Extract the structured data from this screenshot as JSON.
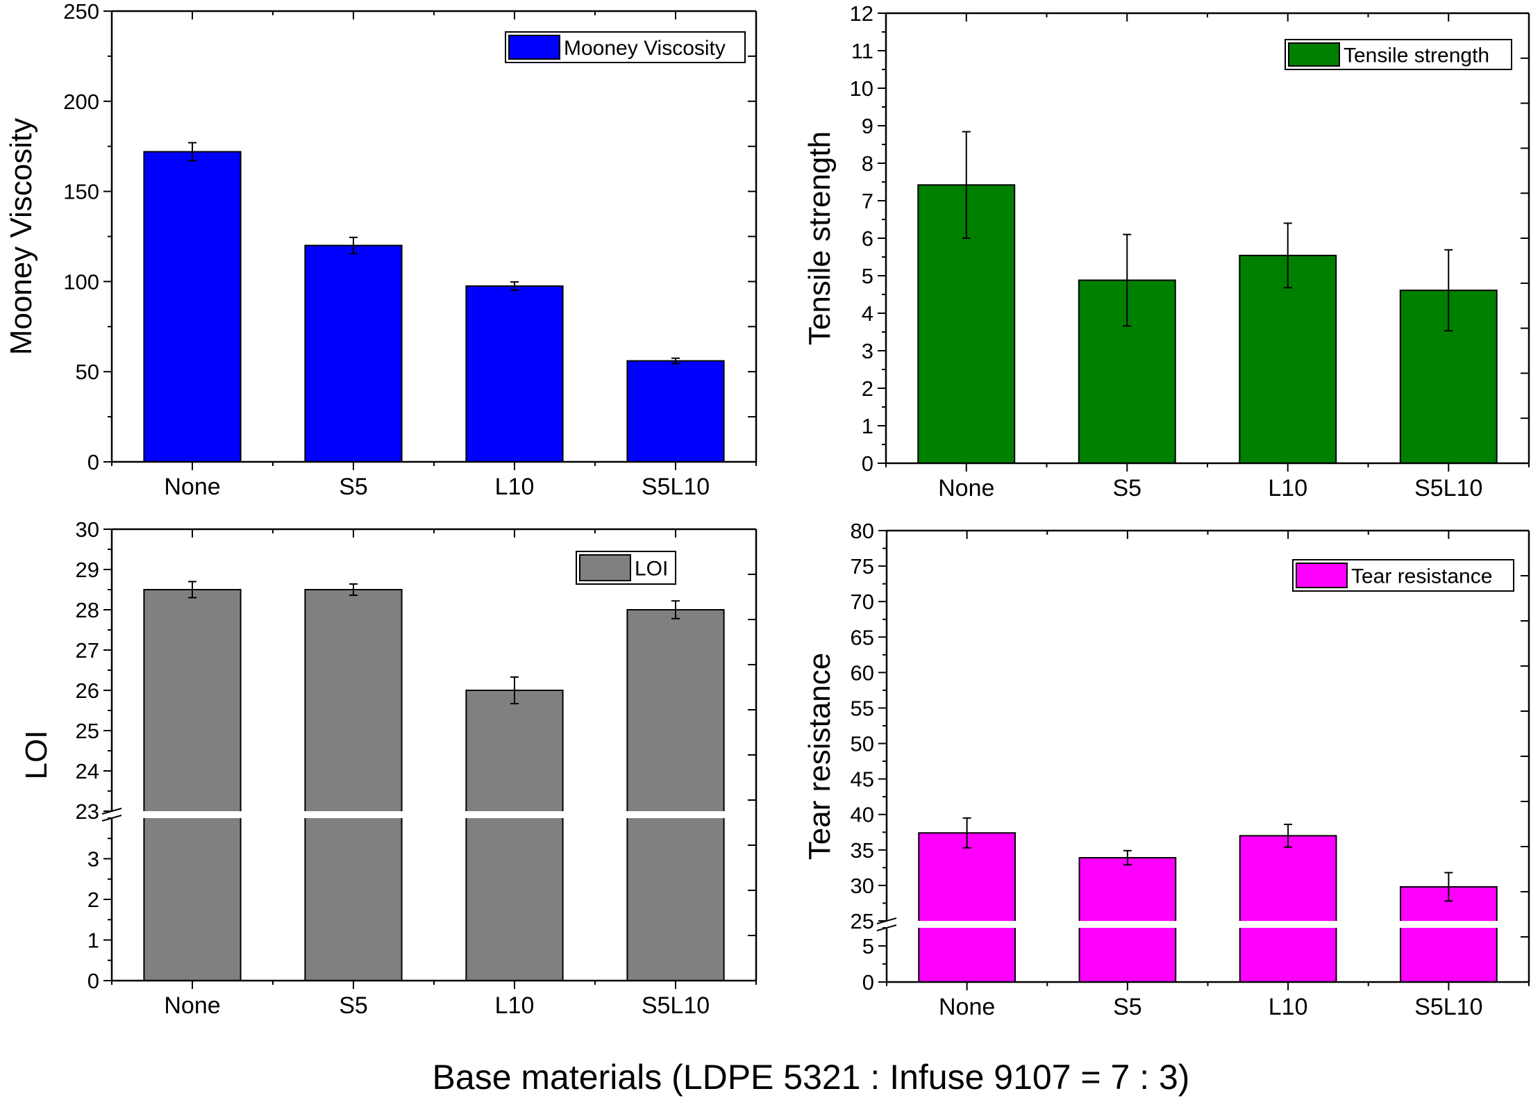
{
  "figure": {
    "shared_xlabel": "Base materials (LDPE 5321 : Infuse 9107 = 7 : 3)"
  },
  "chart_data": [
    {
      "type": "bar",
      "panel": "top-left",
      "title": "",
      "categories": [
        "None",
        "S5",
        "L10",
        "S5L10"
      ],
      "series": [
        {
          "name": "Mooney Viscosity",
          "values": [
            172,
            120,
            97.5,
            56
          ],
          "errors": [
            5,
            4.5,
            2.3,
            1.5
          ]
        }
      ],
      "color": "#0000ff",
      "xlabel": "",
      "ylabel": "Mooney Viscosity",
      "ylim": [
        0,
        250
      ],
      "yticks": [
        0,
        50,
        100,
        150,
        200,
        250
      ],
      "yminor": 25,
      "legend": "top-right",
      "grid": false
    },
    {
      "type": "bar",
      "panel": "top-right",
      "title": "",
      "categories": [
        "None",
        "S5",
        "L10",
        "S5L10"
      ],
      "series": [
        {
          "name": "Tensile strength",
          "values": [
            7.42,
            4.88,
            5.54,
            4.61
          ],
          "errors": [
            1.42,
            1.22,
            0.86,
            1.08
          ]
        }
      ],
      "color": "#008000",
      "xlabel": "",
      "ylabel": "Tensile strength",
      "ylim": [
        0,
        12
      ],
      "yticks": [
        0,
        1,
        2,
        3,
        4,
        5,
        6,
        7,
        8,
        9,
        10,
        11,
        12
      ],
      "yminor": 0.5,
      "legend": "top-right",
      "grid": false
    },
    {
      "type": "bar",
      "panel": "bottom-left",
      "title": "",
      "categories": [
        "None",
        "S5",
        "L10",
        "S5L10"
      ],
      "series": [
        {
          "name": "LOI",
          "values": [
            28.5,
            28.5,
            26.0,
            28.0
          ],
          "errors": [
            0.2,
            0.14,
            0.33,
            0.22
          ]
        }
      ],
      "color": "#808080",
      "xlabel": "",
      "ylabel": "LOI",
      "ylim": [
        0,
        30
      ],
      "axis_break": {
        "lower": [
          0,
          4
        ],
        "upper": [
          23,
          30
        ]
      },
      "yticks": [
        0,
        1,
        2,
        3,
        23,
        24,
        25,
        26,
        27,
        28,
        29,
        30
      ],
      "yminor": 0.5,
      "legend": "top-right",
      "grid": false
    },
    {
      "type": "bar",
      "panel": "bottom-right",
      "title": "",
      "categories": [
        "None",
        "S5",
        "L10",
        "S5L10"
      ],
      "series": [
        {
          "name": "Tear resistance",
          "values": [
            37.4,
            33.9,
            37.0,
            29.8
          ],
          "errors": [
            2.1,
            1.0,
            1.6,
            2.0
          ]
        }
      ],
      "color": "#ff00ff",
      "xlabel": "",
      "ylabel": "Tear resistance",
      "ylim": [
        0,
        80
      ],
      "axis_break": {
        "lower": [
          0,
          7.5
        ],
        "upper": [
          25,
          80
        ]
      },
      "yticks": [
        0,
        5,
        25,
        30,
        35,
        40,
        45,
        50,
        55,
        60,
        65,
        70,
        75,
        80
      ],
      "yminor": 2.5,
      "legend": "top-right",
      "grid": false
    }
  ]
}
